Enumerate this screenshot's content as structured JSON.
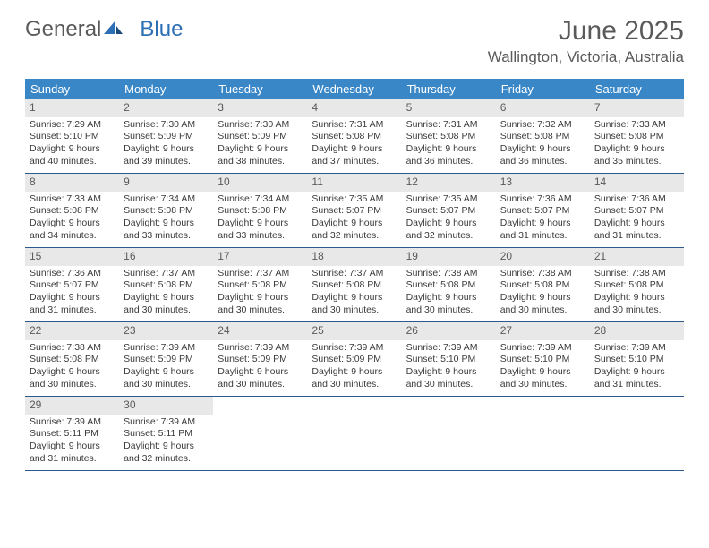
{
  "logo": {
    "text_gray": "General",
    "text_blue": "Blue"
  },
  "title": "June 2025",
  "location": "Wallington, Victoria, Australia",
  "colors": {
    "header_bg": "#3a87c8",
    "header_text": "#ffffff",
    "daynum_bg": "#e8e8e8",
    "text_muted": "#5a5a5a",
    "text_body": "#3a3a3a",
    "border": "#2d5a8a",
    "logo_blue": "#2d6fb5"
  },
  "weekdays": [
    "Sunday",
    "Monday",
    "Tuesday",
    "Wednesday",
    "Thursday",
    "Friday",
    "Saturday"
  ],
  "weeks": [
    [
      {
        "n": "1",
        "sr": "Sunrise: 7:29 AM",
        "ss": "Sunset: 5:10 PM",
        "d1": "Daylight: 9 hours",
        "d2": "and 40 minutes."
      },
      {
        "n": "2",
        "sr": "Sunrise: 7:30 AM",
        "ss": "Sunset: 5:09 PM",
        "d1": "Daylight: 9 hours",
        "d2": "and 39 minutes."
      },
      {
        "n": "3",
        "sr": "Sunrise: 7:30 AM",
        "ss": "Sunset: 5:09 PM",
        "d1": "Daylight: 9 hours",
        "d2": "and 38 minutes."
      },
      {
        "n": "4",
        "sr": "Sunrise: 7:31 AM",
        "ss": "Sunset: 5:08 PM",
        "d1": "Daylight: 9 hours",
        "d2": "and 37 minutes."
      },
      {
        "n": "5",
        "sr": "Sunrise: 7:31 AM",
        "ss": "Sunset: 5:08 PM",
        "d1": "Daylight: 9 hours",
        "d2": "and 36 minutes."
      },
      {
        "n": "6",
        "sr": "Sunrise: 7:32 AM",
        "ss": "Sunset: 5:08 PM",
        "d1": "Daylight: 9 hours",
        "d2": "and 36 minutes."
      },
      {
        "n": "7",
        "sr": "Sunrise: 7:33 AM",
        "ss": "Sunset: 5:08 PM",
        "d1": "Daylight: 9 hours",
        "d2": "and 35 minutes."
      }
    ],
    [
      {
        "n": "8",
        "sr": "Sunrise: 7:33 AM",
        "ss": "Sunset: 5:08 PM",
        "d1": "Daylight: 9 hours",
        "d2": "and 34 minutes."
      },
      {
        "n": "9",
        "sr": "Sunrise: 7:34 AM",
        "ss": "Sunset: 5:08 PM",
        "d1": "Daylight: 9 hours",
        "d2": "and 33 minutes."
      },
      {
        "n": "10",
        "sr": "Sunrise: 7:34 AM",
        "ss": "Sunset: 5:08 PM",
        "d1": "Daylight: 9 hours",
        "d2": "and 33 minutes."
      },
      {
        "n": "11",
        "sr": "Sunrise: 7:35 AM",
        "ss": "Sunset: 5:07 PM",
        "d1": "Daylight: 9 hours",
        "d2": "and 32 minutes."
      },
      {
        "n": "12",
        "sr": "Sunrise: 7:35 AM",
        "ss": "Sunset: 5:07 PM",
        "d1": "Daylight: 9 hours",
        "d2": "and 32 minutes."
      },
      {
        "n": "13",
        "sr": "Sunrise: 7:36 AM",
        "ss": "Sunset: 5:07 PM",
        "d1": "Daylight: 9 hours",
        "d2": "and 31 minutes."
      },
      {
        "n": "14",
        "sr": "Sunrise: 7:36 AM",
        "ss": "Sunset: 5:07 PM",
        "d1": "Daylight: 9 hours",
        "d2": "and 31 minutes."
      }
    ],
    [
      {
        "n": "15",
        "sr": "Sunrise: 7:36 AM",
        "ss": "Sunset: 5:07 PM",
        "d1": "Daylight: 9 hours",
        "d2": "and 31 minutes."
      },
      {
        "n": "16",
        "sr": "Sunrise: 7:37 AM",
        "ss": "Sunset: 5:08 PM",
        "d1": "Daylight: 9 hours",
        "d2": "and 30 minutes."
      },
      {
        "n": "17",
        "sr": "Sunrise: 7:37 AM",
        "ss": "Sunset: 5:08 PM",
        "d1": "Daylight: 9 hours",
        "d2": "and 30 minutes."
      },
      {
        "n": "18",
        "sr": "Sunrise: 7:37 AM",
        "ss": "Sunset: 5:08 PM",
        "d1": "Daylight: 9 hours",
        "d2": "and 30 minutes."
      },
      {
        "n": "19",
        "sr": "Sunrise: 7:38 AM",
        "ss": "Sunset: 5:08 PM",
        "d1": "Daylight: 9 hours",
        "d2": "and 30 minutes."
      },
      {
        "n": "20",
        "sr": "Sunrise: 7:38 AM",
        "ss": "Sunset: 5:08 PM",
        "d1": "Daylight: 9 hours",
        "d2": "and 30 minutes."
      },
      {
        "n": "21",
        "sr": "Sunrise: 7:38 AM",
        "ss": "Sunset: 5:08 PM",
        "d1": "Daylight: 9 hours",
        "d2": "and 30 minutes."
      }
    ],
    [
      {
        "n": "22",
        "sr": "Sunrise: 7:38 AM",
        "ss": "Sunset: 5:08 PM",
        "d1": "Daylight: 9 hours",
        "d2": "and 30 minutes."
      },
      {
        "n": "23",
        "sr": "Sunrise: 7:39 AM",
        "ss": "Sunset: 5:09 PM",
        "d1": "Daylight: 9 hours",
        "d2": "and 30 minutes."
      },
      {
        "n": "24",
        "sr": "Sunrise: 7:39 AM",
        "ss": "Sunset: 5:09 PM",
        "d1": "Daylight: 9 hours",
        "d2": "and 30 minutes."
      },
      {
        "n": "25",
        "sr": "Sunrise: 7:39 AM",
        "ss": "Sunset: 5:09 PM",
        "d1": "Daylight: 9 hours",
        "d2": "and 30 minutes."
      },
      {
        "n": "26",
        "sr": "Sunrise: 7:39 AM",
        "ss": "Sunset: 5:10 PM",
        "d1": "Daylight: 9 hours",
        "d2": "and 30 minutes."
      },
      {
        "n": "27",
        "sr": "Sunrise: 7:39 AM",
        "ss": "Sunset: 5:10 PM",
        "d1": "Daylight: 9 hours",
        "d2": "and 30 minutes."
      },
      {
        "n": "28",
        "sr": "Sunrise: 7:39 AM",
        "ss": "Sunset: 5:10 PM",
        "d1": "Daylight: 9 hours",
        "d2": "and 31 minutes."
      }
    ],
    [
      {
        "n": "29",
        "sr": "Sunrise: 7:39 AM",
        "ss": "Sunset: 5:11 PM",
        "d1": "Daylight: 9 hours",
        "d2": "and 31 minutes."
      },
      {
        "n": "30",
        "sr": "Sunrise: 7:39 AM",
        "ss": "Sunset: 5:11 PM",
        "d1": "Daylight: 9 hours",
        "d2": "and 32 minutes."
      },
      null,
      null,
      null,
      null,
      null
    ]
  ]
}
